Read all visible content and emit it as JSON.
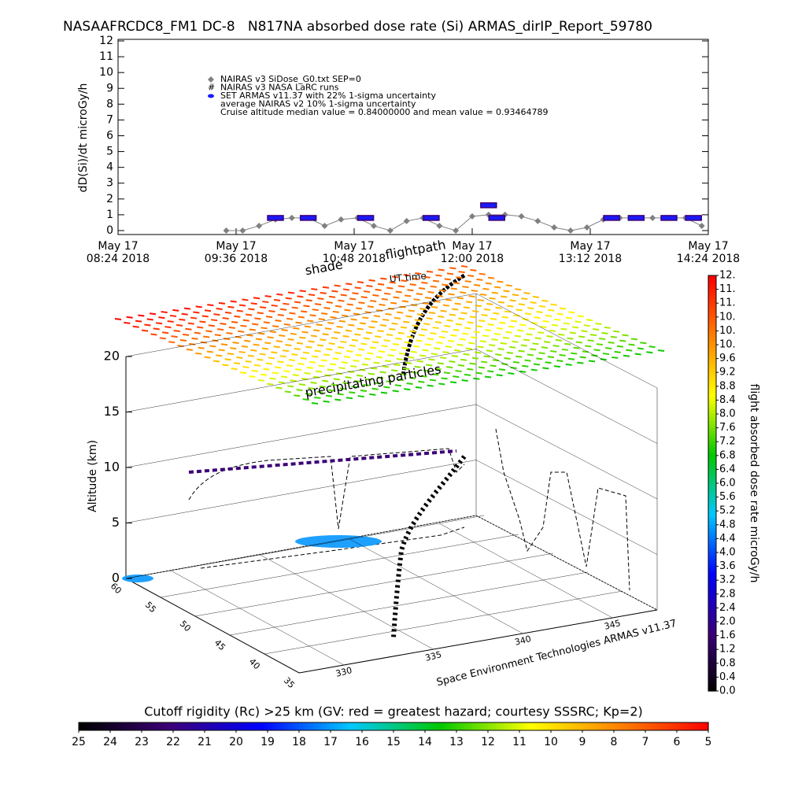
{
  "chart_data": [
    {
      "type": "line",
      "title": "NASAAFRCDC8_FM1 DC-8   N817NA absorbed dose rate (Si) ARMAS_dirIP_Report_59780",
      "ylabel": "dD(Si)/dt microGy/h",
      "xlim": [
        "2018-05-17 08:24",
        "2018-05-17 14:24"
      ],
      "xticks": [
        {
          "value": "2018-05-17 08:24",
          "label": [
            "May 17",
            "08:24 2018"
          ]
        },
        {
          "value": "2018-05-17 09:36",
          "label": [
            "May 17",
            "09:36 2018"
          ]
        },
        {
          "value": "2018-05-17 10:48",
          "label": [
            "May 17",
            "10:48 2018"
          ]
        },
        {
          "value": "2018-05-17 12:00",
          "label": [
            "May 17",
            "12:00 2018"
          ]
        },
        {
          "value": "2018-05-17 13:12",
          "label": [
            "May 17",
            "13:12 2018"
          ]
        },
        {
          "value": "2018-05-17 14:24",
          "label": [
            "May 17",
            "14:24 2018"
          ]
        }
      ],
      "ylim": [
        -0.25,
        12.1
      ],
      "yticks": [
        0,
        1,
        2,
        3,
        4,
        5,
        6,
        7,
        8,
        9,
        10,
        11,
        12
      ],
      "series": [
        {
          "name": "NAIRAS v3 SiDose_G0.txt SEP=0",
          "color": "#808080",
          "marker": "diamond",
          "x": [
            "2018-05-17 09:30",
            "2018-05-17 09:40",
            "2018-05-17 09:50",
            "2018-05-17 10:00",
            "2018-05-17 10:10",
            "2018-05-17 10:20",
            "2018-05-17 10:30",
            "2018-05-17 10:40",
            "2018-05-17 10:50",
            "2018-05-17 11:00",
            "2018-05-17 11:10",
            "2018-05-17 11:20",
            "2018-05-17 11:30",
            "2018-05-17 11:40",
            "2018-05-17 11:50",
            "2018-05-17 12:00",
            "2018-05-17 12:10",
            "2018-05-17 12:20",
            "2018-05-17 12:30",
            "2018-05-17 12:40",
            "2018-05-17 12:50",
            "2018-05-17 13:00",
            "2018-05-17 13:10",
            "2018-05-17 13:20",
            "2018-05-17 13:30",
            "2018-05-17 13:40",
            "2018-05-17 13:50",
            "2018-05-17 14:00",
            "2018-05-17 14:10",
            "2018-05-17 14:20"
          ],
          "values": [
            0,
            0,
            0.3,
            0.7,
            0.8,
            0.8,
            0.3,
            0.7,
            0.8,
            0.3,
            0,
            0.6,
            0.8,
            0.3,
            0,
            0.9,
            1.0,
            1.0,
            0.9,
            0.6,
            0.2,
            0,
            0.2,
            0.7,
            0.8,
            0.8,
            0.8,
            0.8,
            0.8,
            0.3
          ]
        },
        {
          "name": "SET ARMAS v11.37 with 22% 1-sigma uncertainty",
          "color": "#1a1aff",
          "marker": "bar",
          "x": [
            "2018-05-17 10:00",
            "2018-05-17 10:20",
            "2018-05-17 10:55",
            "2018-05-17 11:35",
            "2018-05-17 12:10",
            "2018-05-17 12:15",
            "2018-05-17 13:25",
            "2018-05-17 13:40",
            "2018-05-17 14:00",
            "2018-05-17 14:15"
          ],
          "values": [
            0.8,
            0.8,
            0.8,
            0.8,
            1.6,
            0.8,
            0.8,
            0.8,
            0.8,
            0.8
          ]
        }
      ],
      "legend_notes": [
        "NAIRAS v3 NASA LaRC runs",
        "average NAIRAS v2 10% 1-sigma uncertainty",
        "Cruise altitude median value = 0.84000000 and mean value = 0.93464789"
      ]
    },
    {
      "type": "surface3d",
      "zlabel": "Altitude (km)",
      "zticks": [
        0,
        5,
        10,
        15,
        20
      ],
      "lat_ticks": [
        60,
        55,
        50,
        45,
        40,
        35
      ],
      "lon_ticks": [
        330,
        335,
        340,
        345
      ],
      "annotations": [
        "shade",
        "UT time",
        "flightpath",
        "precipitating particles"
      ],
      "credit": "Space Environment Technologies ARMAS v11.37"
    },
    {
      "type": "colorbar",
      "ylabel": "flight absorbed dose rate microGy/h",
      "ylim": [
        0,
        12
      ],
      "colormap": [
        "#000000",
        "#3c0078",
        "#0000ff",
        "#00c8ff",
        "#00c800",
        "#ffff00",
        "#ff8000",
        "#ff0000"
      ],
      "yticks": [
        {
          "value": 0,
          "label": "0.0"
        },
        {
          "value": 0.4,
          "label": "0.4"
        },
        {
          "value": 0.8,
          "label": "0.8"
        },
        {
          "value": 1.2,
          "label": "1.2"
        },
        {
          "value": 1.6,
          "label": "1.6"
        },
        {
          "value": 2,
          "label": "2.0"
        },
        {
          "value": 2.4,
          "label": "2.4"
        },
        {
          "value": 2.8,
          "label": "2.8"
        },
        {
          "value": 3.2,
          "label": "3.2"
        },
        {
          "value": 3.6,
          "label": "3.6"
        },
        {
          "value": 4,
          "label": "4.0"
        },
        {
          "value": 4.4,
          "label": "4.4"
        },
        {
          "value": 4.8,
          "label": "4.8"
        },
        {
          "value": 5.2,
          "label": "5.2"
        },
        {
          "value": 5.6,
          "label": "5.6"
        },
        {
          "value": 6,
          "label": "6.0"
        },
        {
          "value": 6.4,
          "label": "6.4"
        },
        {
          "value": 6.8,
          "label": "6.8"
        },
        {
          "value": 7.2,
          "label": "7.2"
        },
        {
          "value": 7.6,
          "label": "7.6"
        },
        {
          "value": 8,
          "label": "8.0"
        },
        {
          "value": 8.4,
          "label": "8.4"
        },
        {
          "value": 8.8,
          "label": "8.8"
        },
        {
          "value": 9.2,
          "label": "9.2"
        },
        {
          "value": 9.6,
          "label": "9.6"
        },
        {
          "value": 10,
          "label": "10."
        },
        {
          "value": 10.4,
          "label": "10."
        },
        {
          "value": 10.8,
          "label": "10."
        },
        {
          "value": 11.2,
          "label": "11."
        },
        {
          "value": 11.6,
          "label": "11."
        },
        {
          "value": 12,
          "label": "12."
        }
      ]
    },
    {
      "type": "colorbar",
      "title": "Cutoff rigidity (Rc) >25 km (GV: red = greatest hazard; courtesy SSSRC; Kp=2)",
      "xlim": [
        25,
        5
      ],
      "colormap": [
        "#000000",
        "#3c0078",
        "#0000ff",
        "#00c8ff",
        "#00c800",
        "#ffff00",
        "#ff8000",
        "#ff0000"
      ],
      "xticks": [
        25,
        24,
        23,
        22,
        21,
        20,
        19,
        18,
        17,
        16,
        15,
        14,
        13,
        12,
        11,
        10,
        9,
        8,
        7,
        6,
        5
      ]
    }
  ]
}
